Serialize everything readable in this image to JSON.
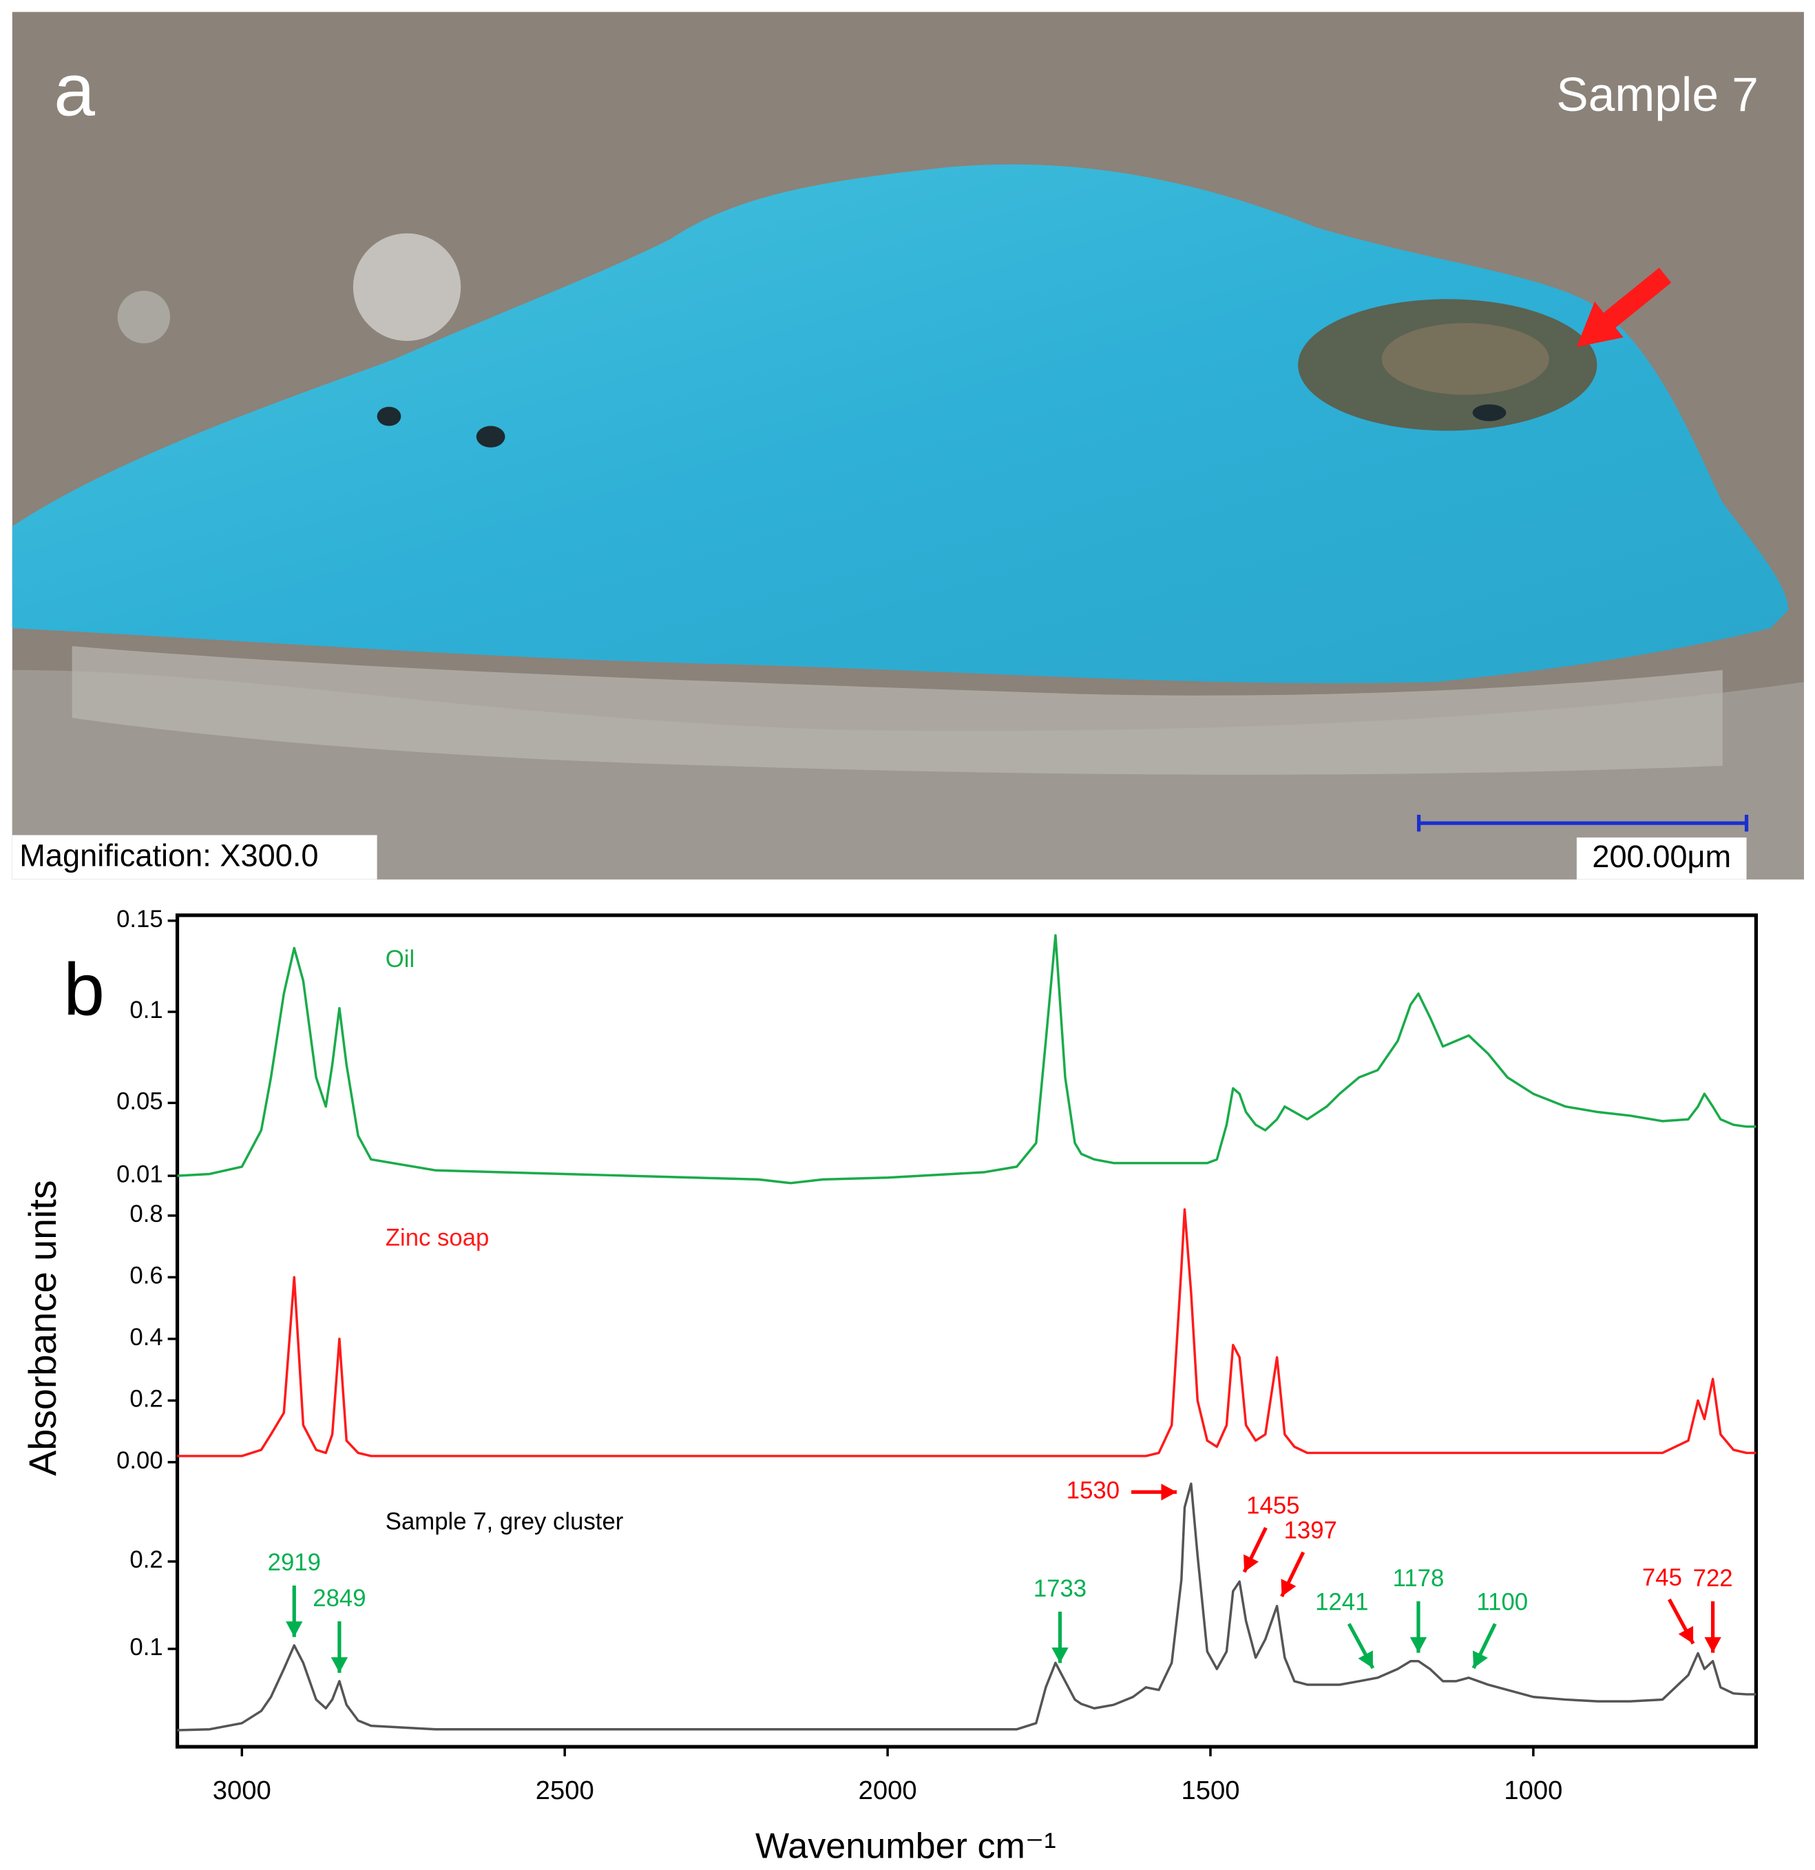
{
  "panel_a": {
    "label": "a",
    "sample": "Sample 7",
    "magnification": "Magnification: X300.0",
    "scale_bar": "200.00μm"
  },
  "chart_data": {
    "type": "line",
    "panel_label": "b",
    "xlabel": "Wavenumber cm⁻¹",
    "ylabel": "Absorbance units",
    "xlim": [
      3100,
      655
    ],
    "xticks": [
      3000,
      2500,
      2000,
      1500,
      1000
    ],
    "x": [
      3100,
      3050,
      3000,
      2970,
      2955,
      2935,
      2919,
      2905,
      2885,
      2870,
      2860,
      2849,
      2838,
      2820,
      2800,
      2700,
      2600,
      2500,
      2400,
      2300,
      2200,
      2150,
      2100,
      2000,
      1900,
      1850,
      1800,
      1770,
      1755,
      1740,
      1725,
      1710,
      1700,
      1680,
      1650,
      1620,
      1600,
      1580,
      1560,
      1545,
      1540,
      1530,
      1520,
      1505,
      1490,
      1475,
      1465,
      1455,
      1445,
      1430,
      1415,
      1397,
      1385,
      1370,
      1350,
      1320,
      1300,
      1270,
      1241,
      1210,
      1190,
      1178,
      1160,
      1140,
      1120,
      1100,
      1070,
      1040,
      1000,
      950,
      900,
      850,
      800,
      760,
      745,
      735,
      722,
      710,
      690,
      670,
      655
    ],
    "series": [
      {
        "name": "Oil",
        "color": "#1aab4a",
        "ylim": [
          0,
          0.153
        ],
        "yticks": [
          0.01,
          0.05,
          0.1,
          0.15
        ],
        "values": [
          0.01,
          0.011,
          0.015,
          0.035,
          0.064,
          0.11,
          0.135,
          0.117,
          0.064,
          0.048,
          0.071,
          0.102,
          0.071,
          0.032,
          0.019,
          0.013,
          0.012,
          0.011,
          0.01,
          0.009,
          0.008,
          0.006,
          0.008,
          0.009,
          0.011,
          0.012,
          0.015,
          0.028,
          0.084,
          0.142,
          0.064,
          0.028,
          0.022,
          0.019,
          0.017,
          0.017,
          0.017,
          0.017,
          0.017,
          0.017,
          0.017,
          0.017,
          0.017,
          0.017,
          0.019,
          0.038,
          0.058,
          0.055,
          0.045,
          0.038,
          0.035,
          0.041,
          0.048,
          0.045,
          0.041,
          0.048,
          0.055,
          0.064,
          0.068,
          0.084,
          0.104,
          0.11,
          0.097,
          0.081,
          0.084,
          0.087,
          0.077,
          0.064,
          0.055,
          0.048,
          0.045,
          0.043,
          0.04,
          0.041,
          0.048,
          0.055,
          0.048,
          0.041,
          0.038,
          0.037,
          0.037
        ]
      },
      {
        "name": "Zinc soap",
        "color": "#ff1a1a",
        "ylim": [
          -0.05,
          0.87
        ],
        "yticks": [
          {
            "value": 0,
            "label": "0.00"
          },
          0.2,
          0.4,
          0.6,
          0.8
        ],
        "values": [
          0.02,
          0.02,
          0.02,
          0.04,
          0.09,
          0.16,
          0.6,
          0.12,
          0.04,
          0.03,
          0.09,
          0.4,
          0.07,
          0.03,
          0.02,
          0.02,
          0.02,
          0.02,
          0.02,
          0.02,
          0.02,
          0.02,
          0.02,
          0.02,
          0.02,
          0.02,
          0.02,
          0.02,
          0.02,
          0.02,
          0.02,
          0.02,
          0.02,
          0.02,
          0.02,
          0.02,
          0.02,
          0.03,
          0.12,
          0.63,
          0.82,
          0.55,
          0.2,
          0.07,
          0.05,
          0.12,
          0.38,
          0.34,
          0.12,
          0.07,
          0.09,
          0.34,
          0.09,
          0.05,
          0.03,
          0.03,
          0.03,
          0.03,
          0.03,
          0.03,
          0.03,
          0.03,
          0.03,
          0.03,
          0.03,
          0.03,
          0.03,
          0.03,
          0.03,
          0.03,
          0.03,
          0.03,
          0.03,
          0.07,
          0.2,
          0.14,
          0.27,
          0.09,
          0.04,
          0.03,
          0.03
        ]
      },
      {
        "name": "Sample 7, grey cluster",
        "color": "#555555",
        "ylim": [
          -0.012,
          0.296
        ],
        "yticks": [
          0.1,
          0.2
        ],
        "values": [
          0.007,
          0.008,
          0.015,
          0.029,
          0.045,
          0.077,
          0.104,
          0.084,
          0.042,
          0.032,
          0.042,
          0.063,
          0.036,
          0.018,
          0.012,
          0.008,
          0.008,
          0.008,
          0.008,
          0.008,
          0.008,
          0.008,
          0.008,
          0.008,
          0.008,
          0.008,
          0.008,
          0.015,
          0.056,
          0.084,
          0.063,
          0.042,
          0.037,
          0.032,
          0.036,
          0.045,
          0.056,
          0.053,
          0.084,
          0.179,
          0.262,
          0.289,
          0.207,
          0.097,
          0.077,
          0.097,
          0.166,
          0.177,
          0.132,
          0.09,
          0.111,
          0.149,
          0.09,
          0.063,
          0.059,
          0.059,
          0.059,
          0.063,
          0.067,
          0.077,
          0.086,
          0.086,
          0.077,
          0.063,
          0.063,
          0.067,
          0.059,
          0.053,
          0.045,
          0.042,
          0.04,
          0.04,
          0.042,
          0.07,
          0.095,
          0.077,
          0.086,
          0.056,
          0.049,
          0.048,
          0.048
        ]
      }
    ],
    "annotations": [
      {
        "x": 2919,
        "color": "#00b050",
        "arrow": "down"
      },
      {
        "x": 2849,
        "color": "#00b050",
        "arrow": "down"
      },
      {
        "x": 1733,
        "color": "#00b050",
        "arrow": "down"
      },
      {
        "x": 1530,
        "color": "#ff0000",
        "arrow": "right"
      },
      {
        "x": 1455,
        "color": "#ff0000",
        "arrow": "down-left"
      },
      {
        "x": 1397,
        "color": "#ff0000",
        "arrow": "down-left"
      },
      {
        "x": 1241,
        "color": "#00b050",
        "arrow": "down-right"
      },
      {
        "x": 1178,
        "color": "#00b050",
        "arrow": "down"
      },
      {
        "x": 1100,
        "color": "#00b050",
        "arrow": "down-left"
      },
      {
        "x": 745,
        "color": "#ff0000",
        "arrow": "down-right"
      },
      {
        "x": 722,
        "color": "#ff0000",
        "arrow": "down"
      }
    ]
  }
}
